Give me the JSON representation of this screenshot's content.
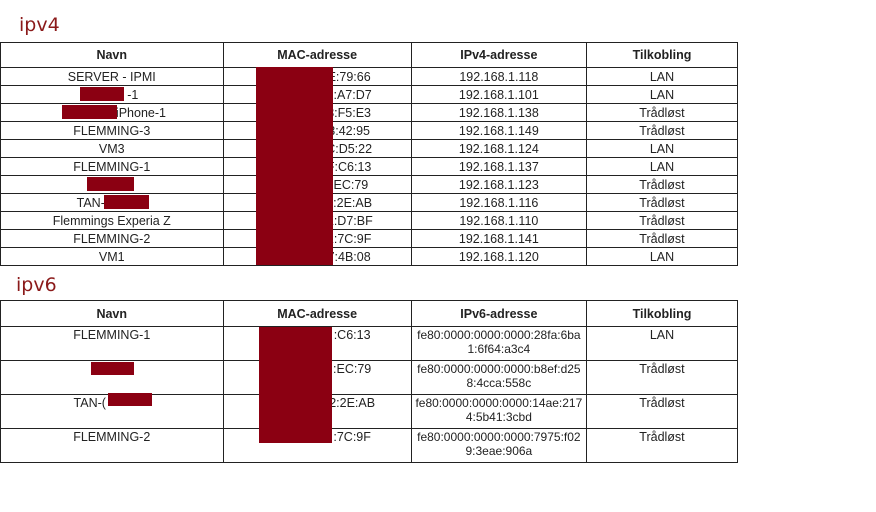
{
  "ipv4": {
    "title": "ipv4",
    "headers": [
      "Navn",
      "MAC-adresse",
      "IPv4-adresse",
      "Tilkobling"
    ],
    "rows": [
      {
        "navn": "SERVER - IPMI",
        "mac": "E:79:66",
        "ip": "192.168.1.118",
        "tilkobling": "LAN"
      },
      {
        "navn": "-1",
        "mac": "9:A7:D7",
        "ip": "192.168.1.101",
        "tilkobling": "LAN"
      },
      {
        "navn": "s-iPhone-1",
        "mac": "3:F5:E3",
        "ip": "192.168.1.138",
        "tilkobling": "Trådløst"
      },
      {
        "navn": "FLEMMING-3",
        "mac": "3:42:95",
        "ip": "192.168.1.149",
        "tilkobling": "Trådløst"
      },
      {
        "navn": "VM3",
        "mac": "C:D5:22",
        "ip": "192.168.1.124",
        "tilkobling": "LAN"
      },
      {
        "navn": "FLEMMING-1",
        "mac": "F:C6:13",
        "ip": "192.168.1.137",
        "tilkobling": "LAN"
      },
      {
        "navn": "",
        "mac": ":EC:79",
        "ip": "192.168.1.123",
        "tilkobling": "Trådløst"
      },
      {
        "navn": "TAN-",
        "mac": "2:2E:AB",
        "ip": "192.168.1.116",
        "tilkobling": "Trådløst"
      },
      {
        "navn": "Flemmings Experia Z",
        "mac": "E:D7:BF",
        "ip": "192.168.1.110",
        "tilkobling": "Trådløst"
      },
      {
        "navn": "FLEMMING-2",
        "mac": "2:7C:9F",
        "ip": "192.168.1.141",
        "tilkobling": "Trådløst"
      },
      {
        "navn": "VM1",
        "mac": "7:4B:08",
        "ip": "192.168.1.120",
        "tilkobling": "LAN"
      }
    ]
  },
  "ipv6": {
    "title": "ipv6",
    "headers": [
      "Navn",
      "MAC-adresse",
      "IPv6-adresse",
      "Tilkobling"
    ],
    "rows": [
      {
        "navn": "FLEMMING-1",
        "mac": ":C6:13",
        "ip": "fe80:0000:0000:0000:28fa:6ba1:6f64:a3c4",
        "tilkobling": "LAN"
      },
      {
        "navn": "",
        "mac": ":EC:79",
        "ip": "fe80:0000:0000:0000:b8ef:d258:4cca:558c",
        "tilkobling": "Trådløst"
      },
      {
        "navn": "TAN-(",
        "mac": "2:2E:AB",
        "ip": "fe80:0000:0000:0000:14ae:2174:5b41:3cbd",
        "tilkobling": "Trådløst"
      },
      {
        "navn": "FLEMMING-2",
        "mac": ":7C:9F",
        "ip": "fe80:0000:0000:0000:7975:f029:3eae:906a",
        "tilkobling": "Trådløst"
      }
    ]
  },
  "colors": {
    "title": "#8b1a1a",
    "redaction": "#8b0012",
    "border": "#222222"
  }
}
